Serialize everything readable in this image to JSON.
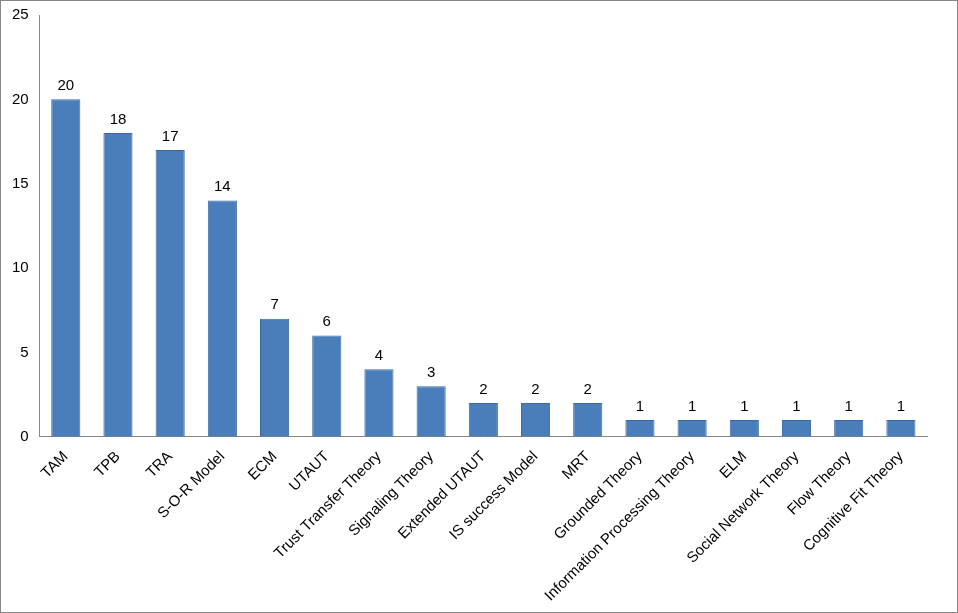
{
  "chart_data": {
    "type": "bar",
    "categories": [
      "TAM",
      "TPB",
      "TRA",
      "S-O-R Model",
      "ECM",
      "UTAUT",
      "Trust Transfer Theory",
      "Signaling Theory",
      "Extended UTAUT",
      "IS success Model",
      "MRT",
      "Grounded Theory",
      "Information Processing Theory",
      "ELM",
      "Social Network Theory",
      "Flow Theory",
      "Cognitive Fit Theory"
    ],
    "values": [
      20,
      18,
      17,
      14,
      7,
      6,
      4,
      3,
      2,
      2,
      2,
      1,
      1,
      1,
      1,
      1,
      1
    ],
    "color": "#4a7ebb",
    "ylim": [
      0,
      25
    ],
    "yticks": [
      0,
      5,
      10,
      15,
      20,
      25
    ],
    "grid": false,
    "data_labels": true
  }
}
